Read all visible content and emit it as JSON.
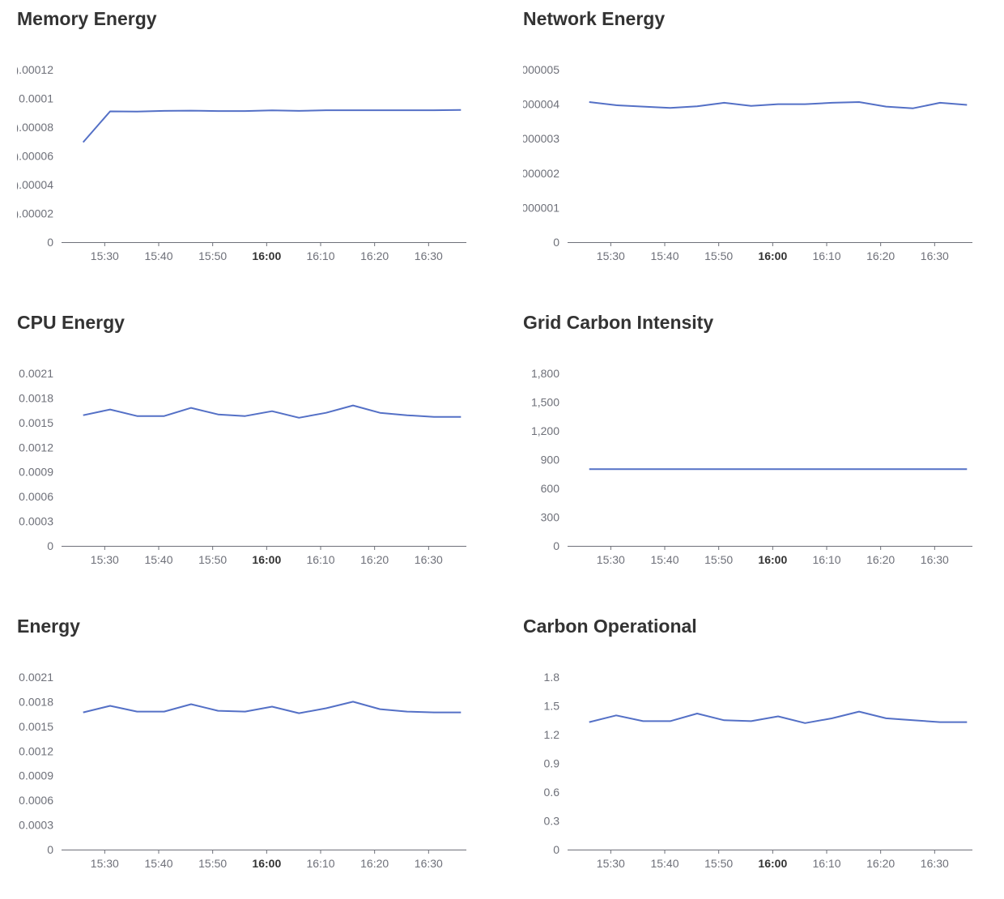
{
  "colors": {
    "line": "#5470c6",
    "axis": "#6e7079",
    "title": "#333333"
  },
  "x_tick_labels": [
    "15:30",
    "15:40",
    "15:50",
    "16:00",
    "16:10",
    "16:20",
    "16:30"
  ],
  "x_tick_bold": "16:00",
  "chart_data": [
    {
      "type": "line",
      "title": "Memory Energy",
      "x": [
        "15:26",
        "15:31",
        "15:36",
        "15:41",
        "15:46",
        "15:51",
        "15:56",
        "16:01",
        "16:06",
        "16:11",
        "16:16",
        "16:21",
        "16:26",
        "16:31",
        "16:36"
      ],
      "y_tick_labels": [
        ").00012",
        "0.0001",
        ").00008",
        ").00006",
        ").00004",
        ").00002",
        "0"
      ],
      "ylim": [
        0,
        0.00012
      ],
      "series": [
        {
          "values": [
            6.95e-05,
            9.1e-05,
            9.08e-05,
            9.13e-05,
            9.15e-05,
            9.12e-05,
            9.12e-05,
            9.17e-05,
            9.13e-05,
            9.18e-05,
            9.18e-05,
            9.18e-05,
            9.18e-05,
            9.18e-05,
            9.2e-05
          ]
        }
      ]
    },
    {
      "type": "line",
      "title": "Network Energy",
      "x": [
        "15:26",
        "15:31",
        "15:36",
        "15:41",
        "15:46",
        "15:51",
        "15:56",
        "16:01",
        "16:06",
        "16:11",
        "16:16",
        "16:21",
        "16:26",
        "16:31",
        "16:36"
      ],
      "y_tick_labels": [
        "000005",
        "000004",
        "000003",
        "000002",
        "000001",
        "0"
      ],
      "ylim": [
        0,
        5e-06
      ],
      "series": [
        {
          "values": [
            4.06e-06,
            3.97e-06,
            3.93e-06,
            3.89e-06,
            3.94e-06,
            4.04e-06,
            3.95e-06,
            4e-06,
            4e-06,
            4.04e-06,
            4.06e-06,
            3.93e-06,
            3.88e-06,
            4.04e-06,
            3.98e-06
          ]
        }
      ]
    },
    {
      "type": "line",
      "title": "CPU Energy",
      "x": [
        "15:26",
        "15:31",
        "15:36",
        "15:41",
        "15:46",
        "15:51",
        "15:56",
        "16:01",
        "16:06",
        "16:11",
        "16:16",
        "16:21",
        "16:26",
        "16:31",
        "16:36"
      ],
      "y_tick_labels": [
        "0.0021",
        "0.0018",
        "0.0015",
        "0.0012",
        "0.0009",
        "0.0006",
        "0.0003",
        "0"
      ],
      "ylim": [
        0,
        0.0021
      ],
      "series": [
        {
          "values": [
            0.00159,
            0.00166,
            0.00158,
            0.00158,
            0.00168,
            0.0016,
            0.00158,
            0.00164,
            0.00156,
            0.00162,
            0.00171,
            0.00162,
            0.00159,
            0.00157,
            0.00157
          ]
        }
      ]
    },
    {
      "type": "line",
      "title": "Grid Carbon Intensity",
      "x": [
        "15:26",
        "15:31",
        "15:36",
        "15:41",
        "15:46",
        "15:51",
        "15:56",
        "16:01",
        "16:06",
        "16:11",
        "16:16",
        "16:21",
        "16:26",
        "16:31",
        "16:36"
      ],
      "y_tick_labels": [
        "1,800",
        "1,500",
        "1,200",
        "900",
        "600",
        "300",
        "0"
      ],
      "ylim": [
        0,
        1800
      ],
      "series": [
        {
          "values": [
            800,
            800,
            800,
            800,
            800,
            800,
            800,
            800,
            800,
            800,
            800,
            800,
            800,
            800,
            800
          ]
        }
      ]
    },
    {
      "type": "line",
      "title": "Energy",
      "x": [
        "15:26",
        "15:31",
        "15:36",
        "15:41",
        "15:46",
        "15:51",
        "15:56",
        "16:01",
        "16:06",
        "16:11",
        "16:16",
        "16:21",
        "16:26",
        "16:31",
        "16:36"
      ],
      "y_tick_labels": [
        "0.0021",
        "0.0018",
        "0.0015",
        "0.0012",
        "0.0009",
        "0.0006",
        "0.0003",
        "0"
      ],
      "ylim": [
        0,
        0.0021
      ],
      "series": [
        {
          "values": [
            0.00167,
            0.00175,
            0.00168,
            0.00168,
            0.00177,
            0.00169,
            0.00168,
            0.00174,
            0.00166,
            0.00172,
            0.0018,
            0.00171,
            0.00168,
            0.00167,
            0.00167
          ]
        }
      ]
    },
    {
      "type": "line",
      "title": "Carbon Operational",
      "x": [
        "15:26",
        "15:31",
        "15:36",
        "15:41",
        "15:46",
        "15:51",
        "15:56",
        "16:01",
        "16:06",
        "16:11",
        "16:16",
        "16:21",
        "16:26",
        "16:31",
        "16:36"
      ],
      "y_tick_labels": [
        "1.8",
        "1.5",
        "1.2",
        "0.9",
        "0.6",
        "0.3",
        "0"
      ],
      "ylim": [
        0,
        1.8
      ],
      "series": [
        {
          "values": [
            1.33,
            1.4,
            1.34,
            1.34,
            1.42,
            1.35,
            1.34,
            1.39,
            1.32,
            1.37,
            1.44,
            1.37,
            1.35,
            1.33,
            1.33
          ]
        }
      ]
    }
  ]
}
